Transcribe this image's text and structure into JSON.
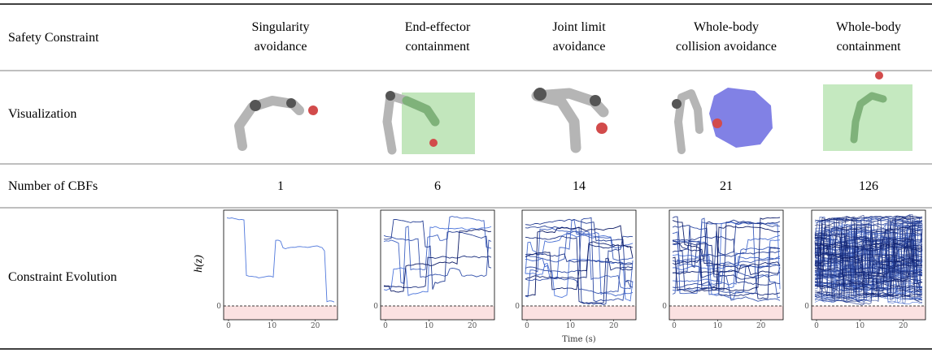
{
  "table": {
    "header": [
      "Safety Constraint",
      "Singularity",
      "avoidance",
      "End-effector",
      "containment",
      "Joint limit",
      "avoidance",
      "Whole-body",
      "collision avoidance",
      "Whole-body",
      "containment"
    ],
    "rows": [
      {
        "label": "Visualization"
      },
      {
        "label": "Number of CBFs",
        "values": [
          "1",
          "6",
          "14",
          "21",
          "126"
        ]
      },
      {
        "label": "Constraint Evolution"
      }
    ]
  },
  "plots": {
    "y_label": "h(z)",
    "x_label": "Time (s)",
    "y_tick": "0",
    "x_ticks": [
      "0",
      "10",
      "20"
    ]
  }
}
